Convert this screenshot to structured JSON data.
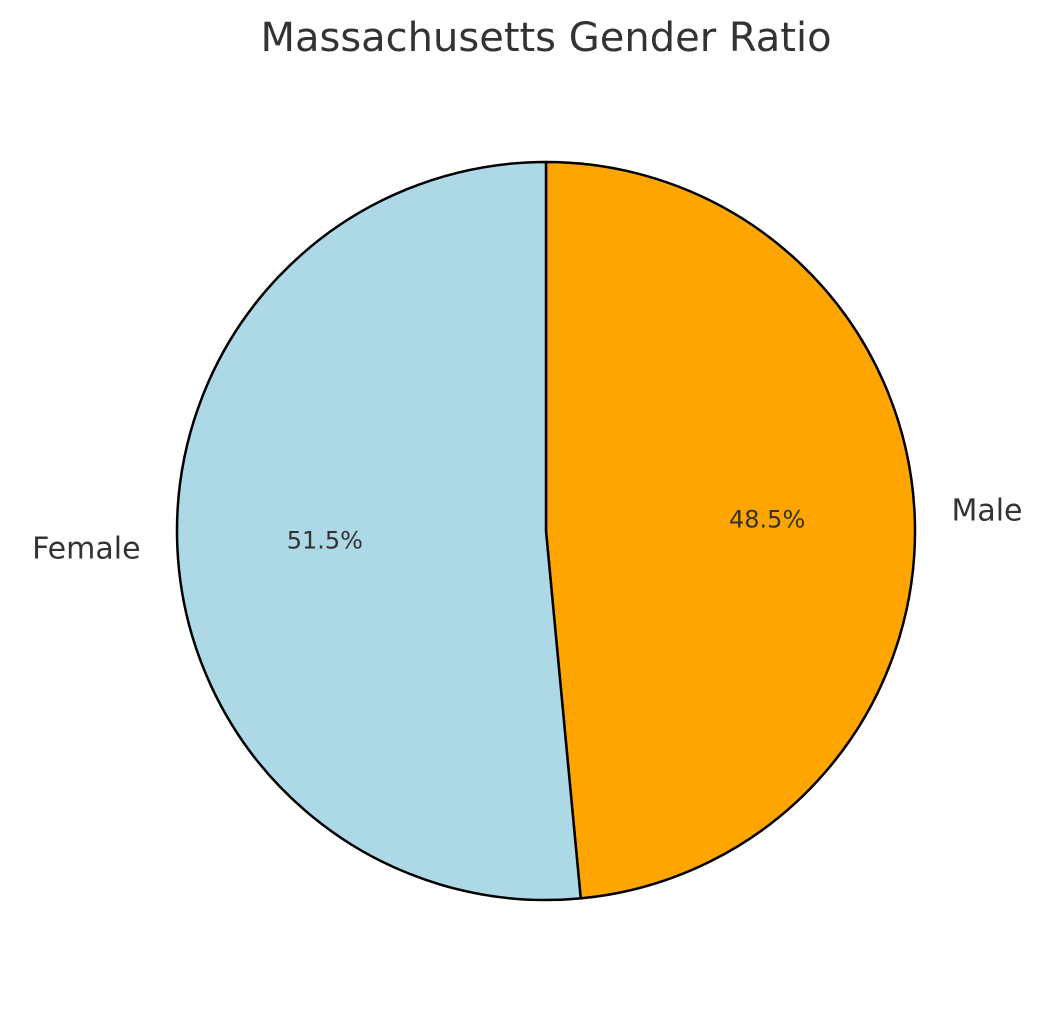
{
  "chart_data": {
    "type": "pie",
    "title": "Massachusetts Gender Ratio",
    "categories": [
      "Male",
      "Female"
    ],
    "values": [
      48.5,
      51.5
    ],
    "value_labels": [
      "48.5%",
      "51.5%"
    ],
    "colors": [
      "#ffa500",
      "#add8e6"
    ]
  }
}
